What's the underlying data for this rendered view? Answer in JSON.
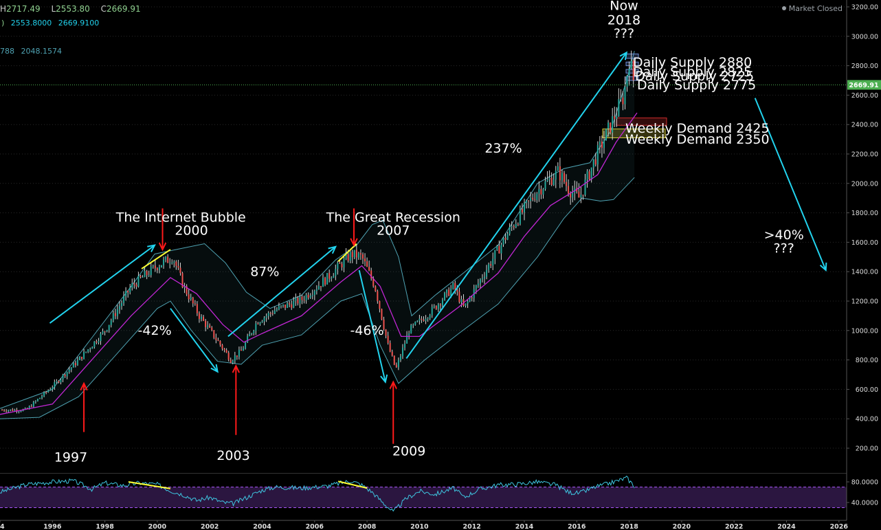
{
  "header": {
    "ohlc": [
      {
        "prefix": "H",
        "value": "2717.49"
      },
      {
        "prefix": "L",
        "value": "2553.80"
      },
      {
        "prefix": "C",
        "value": "2669.91"
      }
    ],
    "bb_values": [
      "2553.8000",
      "2669.9100"
    ],
    "bb_partial_label": "788",
    "bb_lower_value": "2048.1574",
    "market_status": "Market Closed"
  },
  "colors": {
    "background": "#000000",
    "candle_up": "#26a69a",
    "candle_down": "#ef5350",
    "bb_band": "#4fa3b3",
    "ma_line": "#c026d3",
    "arrow": "#22d3ee",
    "marker": "#ff1a1a",
    "divergence": "#ffff33",
    "last_price": "#4caf50",
    "rsi_line": "#3ec6e0",
    "rsi_level": "#a855f7"
  },
  "chart_data": [
    {
      "type": "candlestick",
      "title": "",
      "xlabel": "",
      "ylabel": "",
      "x_tick_labels": [
        "4",
        "1996",
        "1998",
        "2000",
        "2002",
        "2004",
        "2006",
        "2008",
        "2010",
        "2012",
        "2014",
        "2016",
        "2018",
        "2020",
        "2022",
        "2024",
        "2026"
      ],
      "y_tick_labels": [
        "3200.00",
        "3000.00",
        "2800.00",
        "2600.00",
        "2400.00",
        "2200.00",
        "2000.00",
        "1800.00",
        "1600.00",
        "1400.00",
        "1200.00",
        "1000.00",
        "800.00",
        "600.00",
        "400.00",
        "200.00"
      ],
      "y_ticks": [
        3200,
        3000,
        2800,
        2600,
        2400,
        2200,
        2000,
        1800,
        1600,
        1400,
        1200,
        1000,
        800,
        600,
        400,
        200
      ],
      "ylim": [
        0,
        3250
      ],
      "xlim": [
        1994.0,
        2026.3
      ],
      "last_price": 2669.91,
      "last_price_label": "2669.91",
      "price_path": [
        [
          1994.0,
          460
        ],
        [
          1995.0,
          460
        ],
        [
          1996.0,
          620
        ],
        [
          1997.0,
          800
        ],
        [
          1998.0,
          1000
        ],
        [
          1999.0,
          1300
        ],
        [
          2000.0,
          1440
        ],
        [
          2000.6,
          1500
        ],
        [
          2001.0,
          1300
        ],
        [
          2001.6,
          1100
        ],
        [
          2002.5,
          880
        ],
        [
          2002.8,
          800
        ],
        [
          2003.2,
          860
        ],
        [
          2003.8,
          1060
        ],
        [
          2004.5,
          1140
        ],
        [
          2005.5,
          1210
        ],
        [
          2006.5,
          1360
        ],
        [
          2007.4,
          1520
        ],
        [
          2007.8,
          1500
        ],
        [
          2008.3,
          1300
        ],
        [
          2008.8,
          900
        ],
        [
          2009.1,
          735
        ],
        [
          2009.6,
          1000
        ],
        [
          2010.5,
          1140
        ],
        [
          2011.3,
          1300
        ],
        [
          2011.7,
          1150
        ],
        [
          2012.5,
          1400
        ],
        [
          2013.5,
          1700
        ],
        [
          2014.5,
          1950
        ],
        [
          2015.3,
          2080
        ],
        [
          2015.7,
          1960
        ],
        [
          2016.1,
          1900
        ],
        [
          2016.7,
          2170
        ],
        [
          2017.3,
          2400
        ],
        [
          2017.8,
          2600
        ],
        [
          2018.0,
          2850
        ],
        [
          2018.2,
          2670
        ]
      ],
      "series": [
        {
          "name": "",
          "kind": "moving-average",
          "points": [
            [
              1994.0,
              430
            ],
            [
              1996.0,
              500
            ],
            [
              1997.5,
              800
            ],
            [
              1999.0,
              1100
            ],
            [
              2000.5,
              1360
            ],
            [
              2001.5,
              1250
            ],
            [
              2002.5,
              1040
            ],
            [
              2003.3,
              920
            ],
            [
              2004.0,
              980
            ],
            [
              2005.5,
              1100
            ],
            [
              2007.0,
              1330
            ],
            [
              2007.8,
              1440
            ],
            [
              2008.5,
              1300
            ],
            [
              2009.3,
              960
            ],
            [
              2010.0,
              960
            ],
            [
              2011.5,
              1160
            ],
            [
              2013.0,
              1390
            ],
            [
              2014.0,
              1640
            ],
            [
              2015.0,
              1850
            ],
            [
              2016.0,
              1960
            ],
            [
              2016.8,
              2060
            ],
            [
              2017.5,
              2280
            ],
            [
              2018.3,
              2480
            ]
          ]
        },
        {
          "name": "",
          "kind": "bollinger-upper",
          "points": [
            [
              1994.0,
              470
            ],
            [
              1996.0,
              600
            ],
            [
              1997.5,
              950
            ],
            [
              1999.0,
              1300
            ],
            [
              1999.9,
              1520
            ],
            [
              2000.7,
              1550
            ],
            [
              2001.8,
              1590
            ],
            [
              2002.6,
              1460
            ],
            [
              2003.4,
              1260
            ],
            [
              2004.3,
              1150
            ],
            [
              2005.5,
              1240
            ],
            [
              2006.8,
              1480
            ],
            [
              2007.6,
              1580
            ],
            [
              2008.2,
              1720
            ],
            [
              2008.6,
              1750
            ],
            [
              2009.2,
              1500
            ],
            [
              2009.7,
              1100
            ],
            [
              2010.6,
              1240
            ],
            [
              2011.6,
              1380
            ],
            [
              2013.0,
              1580
            ],
            [
              2014.5,
              2000
            ],
            [
              2015.5,
              2100
            ],
            [
              2016.5,
              2140
            ],
            [
              2017.3,
              2360
            ],
            [
              2017.9,
              2700
            ],
            [
              2018.2,
              2900
            ]
          ]
        },
        {
          "name": "",
          "kind": "bollinger-lower",
          "points": [
            [
              1994.0,
              400
            ],
            [
              1995.5,
              410
            ],
            [
              1997.0,
              550
            ],
            [
              1998.5,
              850
            ],
            [
              2000.0,
              1150
            ],
            [
              2000.5,
              1200
            ],
            [
              2001.3,
              1000
            ],
            [
              2002.3,
              790
            ],
            [
              2003.2,
              770
            ],
            [
              2004.0,
              900
            ],
            [
              2005.5,
              970
            ],
            [
              2007.0,
              1200
            ],
            [
              2007.8,
              1250
            ],
            [
              2008.5,
              900
            ],
            [
              2009.2,
              640
            ],
            [
              2010.2,
              800
            ],
            [
              2011.5,
              980
            ],
            [
              2013.0,
              1180
            ],
            [
              2014.5,
              1500
            ],
            [
              2015.5,
              1760
            ],
            [
              2016.2,
              1900
            ],
            [
              2016.9,
              1880
            ],
            [
              2017.4,
              1890
            ],
            [
              2018.2,
              2040
            ]
          ]
        }
      ],
      "zones": [
        {
          "label": "Daily Supply 2880",
          "from": 2850,
          "to": 2880,
          "color": "#6d8cd6"
        },
        {
          "label": "Daily Supply 2825",
          "from": 2800,
          "to": 2825,
          "color": "#6d8cd6"
        },
        {
          "label": "Daily Supply 2725",
          "from": 2700,
          "to": 2725,
          "color": "#6d8cd6"
        },
        {
          "label": "Daily Supply 2775",
          "from": 2750,
          "to": 2775,
          "color": "#6d8cd6"
        },
        {
          "label": "Weekly Demand 2425",
          "from": 2395,
          "to": 2445,
          "color": "#cc2b2b"
        },
        {
          "label": "Weekly Demand 2350",
          "from": 2310,
          "to": 2370,
          "color": "#d9cc3a"
        }
      ],
      "annotations": [
        {
          "text": "The Internet Bubble",
          "kind": "title",
          "x": 2000.9,
          "y": 1740
        },
        {
          "text": "2000",
          "kind": "title",
          "x": 2001.3,
          "y": 1650
        },
        {
          "text": "The Great Recession",
          "kind": "title",
          "x": 2009.0,
          "y": 1740
        },
        {
          "text": "2007",
          "kind": "title",
          "x": 2009.0,
          "y": 1650
        },
        {
          "text": "Now",
          "kind": "title",
          "x": 2017.8,
          "y": 3180
        },
        {
          "text": "2018",
          "kind": "title",
          "x": 2017.8,
          "y": 3080
        },
        {
          "text": "???",
          "kind": "title",
          "x": 2017.8,
          "y": 2990
        },
        {
          "text": "87%",
          "kind": "pct",
          "x": 2004.1,
          "y": 1370
        },
        {
          "text": "-42%",
          "kind": "pct",
          "x": 1999.9,
          "y": 970
        },
        {
          "text": "-46%",
          "kind": "pct",
          "x": 2008.0,
          "y": 970
        },
        {
          "text": "237%",
          "kind": "pct",
          "x": 2013.2,
          "y": 2210
        },
        {
          "text": ">40%",
          "kind": "pct",
          "x": 2023.9,
          "y": 1620
        },
        {
          "text": "???",
          "kind": "pct",
          "x": 2023.9,
          "y": 1530
        },
        {
          "text": "1997",
          "kind": "year",
          "x": 1996.7,
          "y": 110
        },
        {
          "text": "2003",
          "kind": "year",
          "x": 2002.9,
          "y": 120
        },
        {
          "text": "2009",
          "kind": "year",
          "x": 2009.6,
          "y": 150
        }
      ],
      "trend_arrows": [
        {
          "from": [
            1995.9,
            1050
          ],
          "to": [
            1999.9,
            1580
          ]
        },
        {
          "from": [
            2000.5,
            1150
          ],
          "to": [
            2002.3,
            720
          ]
        },
        {
          "from": [
            2002.7,
            960
          ],
          "to": [
            2006.8,
            1570
          ]
        },
        {
          "from": [
            2007.7,
            1410
          ],
          "to": [
            2008.7,
            650
          ]
        },
        {
          "from": [
            2009.5,
            810
          ],
          "to": [
            2017.9,
            2890
          ]
        },
        {
          "from": [
            2022.8,
            2580
          ],
          "to": [
            2025.5,
            1410
          ]
        }
      ],
      "marker_arrows": [
        {
          "x": 2000.2,
          "y_from": 1830,
          "y_to": 1550,
          "dir": "down"
        },
        {
          "x": 1997.2,
          "y_from": 310,
          "y_to": 640,
          "dir": "up"
        },
        {
          "x": 2003.0,
          "y_from": 290,
          "y_to": 760,
          "dir": "up"
        },
        {
          "x": 2007.5,
          "y_from": 1830,
          "y_to": 1580,
          "dir": "down"
        },
        {
          "x": 2009.0,
          "y_from": 230,
          "y_to": 650,
          "dir": "up"
        }
      ],
      "divergence_lines": [
        {
          "from": [
            1999.4,
            1420
          ],
          "to": [
            2000.5,
            1550
          ]
        },
        {
          "from": [
            2006.9,
            1470
          ],
          "to": [
            2007.6,
            1590
          ]
        }
      ]
    },
    {
      "type": "line",
      "title": "",
      "xlabel": "",
      "ylabel": "",
      "y_tick_labels": [
        "80.0000",
        "40.0000"
      ],
      "y_ticks": [
        80,
        40
      ],
      "levels": [
        70,
        30
      ],
      "ylim": [
        10,
        90
      ],
      "xlim": [
        1994.0,
        2026.3
      ],
      "series": [
        {
          "name": "",
          "points": [
            [
              1994.0,
              60
            ],
            [
              1995.0,
              75
            ],
            [
              1996.0,
              80
            ],
            [
              1996.8,
              82
            ],
            [
              1997.5,
              66
            ],
            [
              1998.0,
              78
            ],
            [
              1998.7,
              73
            ],
            [
              1999.3,
              78
            ],
            [
              2000.0,
              75
            ],
            [
              2000.5,
              63
            ],
            [
              2001.0,
              55
            ],
            [
              2001.5,
              44
            ],
            [
              2002.0,
              50
            ],
            [
              2002.5,
              40
            ],
            [
              2002.9,
              38
            ],
            [
              2003.5,
              52
            ],
            [
              2004.0,
              64
            ],
            [
              2004.5,
              70
            ],
            [
              2005.5,
              68
            ],
            [
              2006.5,
              72
            ],
            [
              2007.0,
              78
            ],
            [
              2007.4,
              82
            ],
            [
              2007.8,
              74
            ],
            [
              2008.2,
              60
            ],
            [
              2008.6,
              40
            ],
            [
              2009.0,
              22
            ],
            [
              2009.5,
              48
            ],
            [
              2010.0,
              62
            ],
            [
              2010.6,
              56
            ],
            [
              2011.3,
              68
            ],
            [
              2011.7,
              50
            ],
            [
              2012.3,
              66
            ],
            [
              2013.0,
              74
            ],
            [
              2013.8,
              76
            ],
            [
              2014.5,
              80
            ],
            [
              2015.2,
              74
            ],
            [
              2015.7,
              60
            ],
            [
              2016.1,
              58
            ],
            [
              2016.7,
              70
            ],
            [
              2017.3,
              78
            ],
            [
              2017.9,
              88
            ],
            [
              2018.2,
              72
            ]
          ]
        }
      ],
      "divergence_lines": [
        {
          "from": [
            1998.9,
            80
          ],
          "to": [
            2000.5,
            67
          ]
        },
        {
          "from": [
            2006.9,
            81
          ],
          "to": [
            2008.0,
            68
          ]
        }
      ]
    }
  ]
}
